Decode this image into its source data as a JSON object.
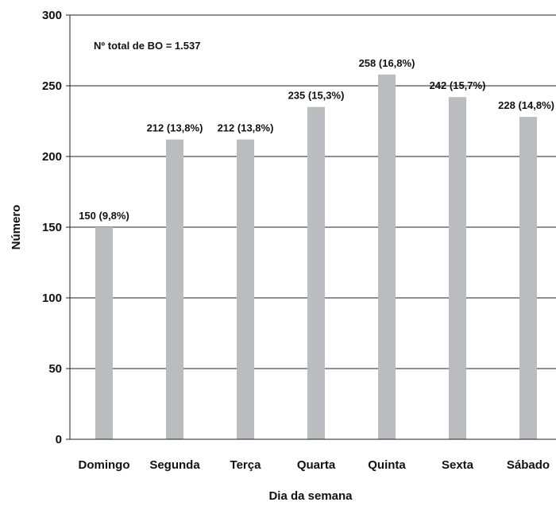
{
  "chart_data": {
    "type": "bar",
    "categories": [
      "Domingo",
      "Segunda",
      "Terça",
      "Quarta",
      "Quinta",
      "Sexta",
      "Sábado"
    ],
    "values": [
      150,
      212,
      212,
      235,
      258,
      242,
      228
    ],
    "data_labels": [
      "150 (9,8%)",
      "212 (13,8%)",
      "212 (13,8%)",
      "235 (15,3%)",
      "258 (16,8%)",
      "242 (15,7%)",
      "228 (14,8%)"
    ],
    "yticks": [
      0,
      50,
      100,
      150,
      200,
      250,
      300
    ],
    "ylim": [
      0,
      300
    ],
    "xlabel": "Dia da semana",
    "ylabel": "Número",
    "annotation": "Nº total de BO = 1.537",
    "grid": true,
    "bar_color": "#bbbcbf",
    "grid_color": "#222222"
  }
}
